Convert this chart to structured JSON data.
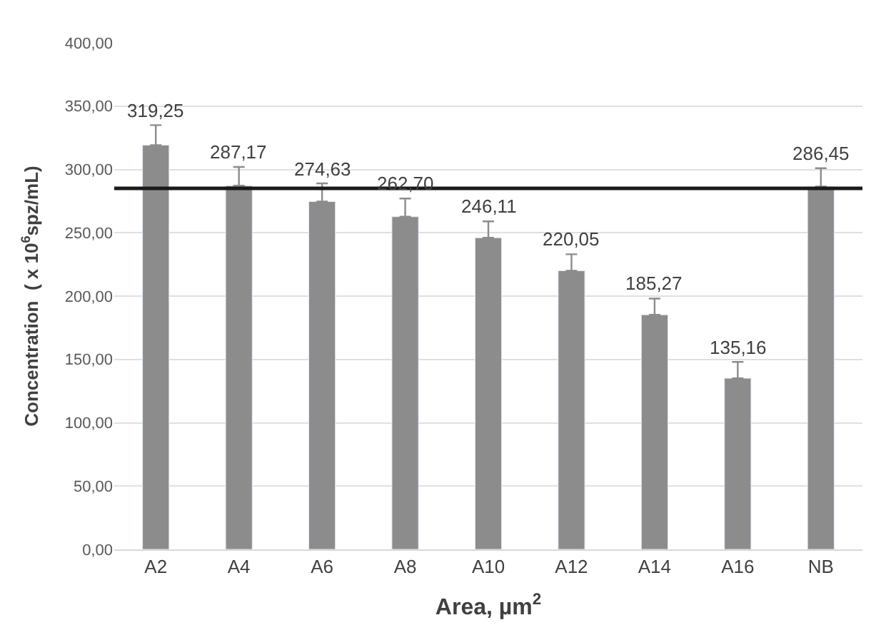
{
  "chart_data": {
    "type": "bar",
    "xlabel": "Area, µm$^{2}$",
    "ylabel": "Concentration  ( x 10$^{6}$spz/mL)",
    "categories": [
      "A2",
      "A4",
      "A6",
      "A8",
      "A10",
      "A12",
      "A14",
      "A16",
      "NB"
    ],
    "values": [
      319.25,
      287.17,
      274.63,
      262.7,
      246.11,
      220.05,
      185.27,
      135.16,
      286.45
    ],
    "value_labels": [
      "319,25",
      "287,17",
      "274,63",
      "262,70",
      "246,11",
      "220,05",
      "185,27",
      "135,16",
      "286,45"
    ],
    "errors": [
      [
        319.25,
        335
      ],
      [
        287.17,
        302
      ],
      [
        274.63,
        289
      ],
      [
        262.7,
        277
      ],
      [
        246.11,
        259
      ],
      [
        220.05,
        233
      ],
      [
        185.27,
        198
      ],
      [
        135.16,
        148
      ],
      [
        286.45,
        301
      ]
    ],
    "color": "#8c8c8c",
    "ylim": [
      0,
      400
    ],
    "yticks": [
      {
        "value": 0,
        "label": "0,00"
      },
      {
        "value": 50,
        "label": "50,00"
      },
      {
        "value": 100,
        "label": "100,00"
      },
      {
        "value": 150,
        "label": "150,00"
      },
      {
        "value": 200,
        "label": "200,00"
      },
      {
        "value": 250,
        "label": "250,00"
      },
      {
        "value": 300,
        "label": "300,00"
      },
      {
        "value": 350,
        "label": "350,00"
      },
      {
        "value": 400,
        "label": "400,00"
      }
    ],
    "ref_lines": [
      {
        "axis": "y",
        "value": 285,
        "color": "#1a1a1a"
      }
    ],
    "grid": "y"
  }
}
